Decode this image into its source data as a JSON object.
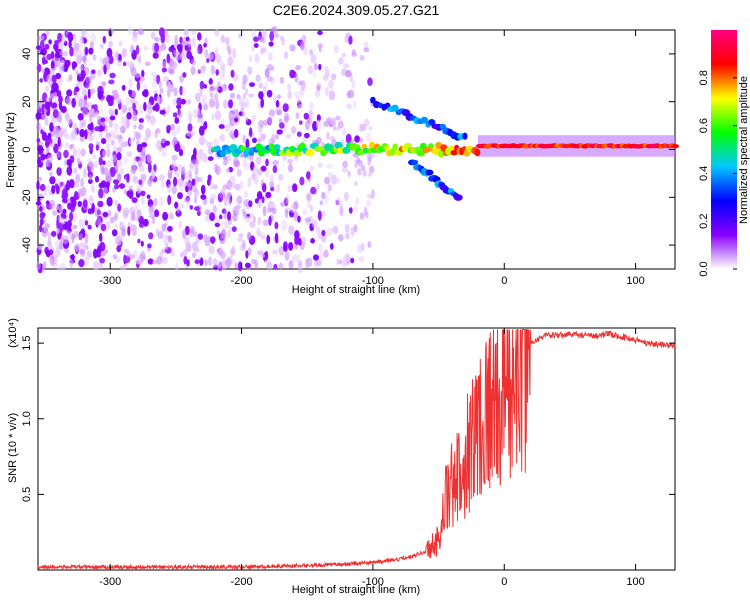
{
  "title": "C2E6.2024.309.05.27.G21",
  "chart_data": [
    {
      "type": "heatmap",
      "xlabel": "Height of straight line (km)",
      "ylabel": "Frequency (Hz)",
      "xlim": [
        -355,
        130
      ],
      "ylim": [
        -50,
        50
      ],
      "xticks": [
        -300,
        -200,
        -100,
        0,
        100
      ],
      "yticks": [
        -40,
        -20,
        0,
        20,
        40
      ],
      "colorbar": {
        "label": "Normalized spectral amplitude",
        "range": [
          0,
          1
        ],
        "ticks": [
          0.0,
          0.2,
          0.4,
          0.6,
          0.8
        ],
        "tick_labels": [
          "0.0",
          "0.2",
          "0.4",
          "0.6",
          "0.8"
        ],
        "colormap": [
          "#ffffff",
          "#8a00ff",
          "#0000ff",
          "#00c8ff",
          "#00ff00",
          "#ffff00",
          "#ff0000",
          "#ff0080"
        ]
      },
      "features": [
        {
          "name": "noise",
          "x": [
            -355,
            -100
          ],
          "freq": [
            -50,
            50
          ],
          "amplitude": 0.1
        },
        {
          "name": "main signal",
          "x": [
            -220,
            130
          ],
          "freq": [
            0,
            2
          ],
          "amplitude_start": 0.3,
          "amplitude_end": 1.0
        },
        {
          "name": "upper branch",
          "x": [
            -100,
            -30
          ],
          "freq": [
            20,
            5
          ]
        },
        {
          "name": "lower branch",
          "x": [
            -70,
            -35
          ],
          "freq": [
            -5,
            -20
          ]
        }
      ]
    },
    {
      "type": "line",
      "xlabel": "Height of straight line (km)",
      "ylabel": "SNR (10 * v/v)",
      "y_multiplier": "(x10⁴)",
      "xlim": [
        -355,
        130
      ],
      "ylim": [
        0,
        1.6
      ],
      "xticks": [
        -300,
        -200,
        -100,
        0,
        100
      ],
      "yticks": [
        0.5,
        1.0,
        1.5
      ],
      "ytick_labels": [
        "0.5",
        "1.0",
        "1.5"
      ],
      "series": [
        {
          "color": "#ee3030",
          "x": [
            -355,
            -300,
            -250,
            -200,
            -150,
            -120,
            -100,
            -80,
            -60,
            -50,
            -45,
            -40,
            -35,
            -30,
            -25,
            -20,
            -15,
            -10,
            -5,
            0,
            5,
            10,
            15,
            20,
            30,
            40,
            50,
            60,
            70,
            80,
            90,
            100,
            110,
            120,
            130
          ],
          "y": [
            0.02,
            0.02,
            0.02,
            0.02,
            0.03,
            0.04,
            0.05,
            0.07,
            0.12,
            0.2,
            0.45,
            0.55,
            0.6,
            0.75,
            0.85,
            0.95,
            1.05,
            1.1,
            1.15,
            1.2,
            1.25,
            1.3,
            1.4,
            1.5,
            1.55,
            1.55,
            1.56,
            1.55,
            1.55,
            1.56,
            1.54,
            1.52,
            1.5,
            1.49,
            1.48
          ]
        }
      ]
    }
  ]
}
